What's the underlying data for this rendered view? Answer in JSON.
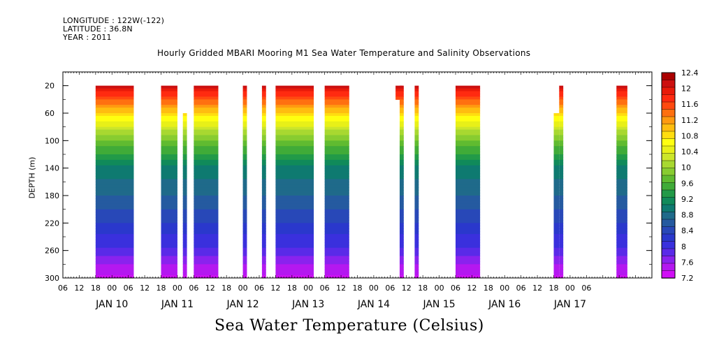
{
  "header": {
    "longitude": "LONGITUDE : 122W(-122)",
    "latitude": "LATITUDE : 36.8N",
    "year": "YEAR : 2011"
  },
  "chart_data": {
    "type": "heatmap",
    "title": "Hourly Gridded MBARI Mooring M1 Sea Water Temperature and Salinity Observations",
    "subtitle": "Sea Water Temperature (Celsius)",
    "ylabel": "DEPTH (m)",
    "xlabel": "",
    "y_ticks": [
      20,
      60,
      100,
      140,
      180,
      220,
      260,
      300
    ],
    "ylim": [
      300,
      0
    ],
    "x_hour_ticks": [
      "06",
      "12",
      "18",
      "00",
      "06",
      "12",
      "18",
      "00",
      "06",
      "12",
      "18",
      "00",
      "06",
      "12",
      "18",
      "00",
      "06",
      "12",
      "18",
      "00",
      "06",
      "12",
      "18",
      "00",
      "06",
      "12",
      "18",
      "00",
      "06",
      "12",
      "18",
      "00",
      "06"
    ],
    "x_day_labels": [
      "JAN 10",
      "JAN 11",
      "JAN 12",
      "JAN 13",
      "JAN 14",
      "JAN 15",
      "JAN 16",
      "JAN 17"
    ],
    "colorbar": {
      "labels": [
        "12.4",
        "12",
        "11.6",
        "11.2",
        "10.8",
        "10.4",
        "10",
        "9.6",
        "9.2",
        "8.8",
        "8.4",
        "8",
        "7.6",
        "7.2"
      ],
      "colors": [
        "#aa0000",
        "#cc1010",
        "#e81a0a",
        "#ff2a10",
        "#ff4a10",
        "#ff7010",
        "#ff9a10",
        "#ffbd10",
        "#ffdd10",
        "#ffff10",
        "#e8f018",
        "#cce62a",
        "#a8d830",
        "#88cc30",
        "#60bb30",
        "#40ab38",
        "#229a48",
        "#108a5a",
        "#0e7a70",
        "#1f6a8a",
        "#255aa0",
        "#2848b8",
        "#2a38cc",
        "#3a30dd",
        "#5a2ae8",
        "#8a22ee",
        "#b418f0",
        "#d010f5"
      ]
    },
    "data_blocks": [
      {
        "start_hour": 12,
        "end_hour": 26,
        "top_depth": 20,
        "bottom_depth": 300
      },
      {
        "start_hour": 36,
        "end_hour": 42,
        "top_depth": 20,
        "bottom_depth": 300
      },
      {
        "start_hour": 44,
        "end_hour": 45.5,
        "top_depth": 60,
        "bottom_depth": 300
      },
      {
        "start_hour": 48,
        "end_hour": 57,
        "top_depth": 20,
        "bottom_depth": 300
      },
      {
        "start_hour": 66,
        "end_hour": 67.5,
        "top_depth": 20,
        "bottom_depth": 300
      },
      {
        "start_hour": 73,
        "end_hour": 74.5,
        "top_depth": 20,
        "bottom_depth": 300
      },
      {
        "start_hour": 78,
        "end_hour": 92,
        "top_depth": 20,
        "bottom_depth": 300
      },
      {
        "start_hour": 96,
        "end_hour": 105,
        "top_depth": 20,
        "bottom_depth": 300
      },
      {
        "start_hour": 122,
        "end_hour": 124.5,
        "top_depth": 20,
        "bottom_depth": 40
      },
      {
        "start_hour": 123.5,
        "end_hour": 125,
        "top_depth": 20,
        "bottom_depth": 300
      },
      {
        "start_hour": 129,
        "end_hour": 130.5,
        "top_depth": 20,
        "bottom_depth": 300
      },
      {
        "start_hour": 144,
        "end_hour": 153,
        "top_depth": 20,
        "bottom_depth": 300
      },
      {
        "start_hour": 180,
        "end_hour": 182,
        "top_depth": 60,
        "bottom_depth": 300
      },
      {
        "start_hour": 182,
        "end_hour": 183.5,
        "top_depth": 20,
        "bottom_depth": 300
      },
      {
        "start_hour": 203,
        "end_hour": 207,
        "top_depth": 20,
        "bottom_depth": 300
      }
    ],
    "temperature_profile": [
      {
        "depth": 20,
        "temp": 12.1
      },
      {
        "depth": 50,
        "temp": 11.2
      },
      {
        "depth": 80,
        "temp": 10.3
      },
      {
        "depth": 110,
        "temp": 9.6
      },
      {
        "depth": 140,
        "temp": 9.0
      },
      {
        "depth": 180,
        "temp": 8.7
      },
      {
        "depth": 220,
        "temp": 8.3
      },
      {
        "depth": 260,
        "temp": 7.9
      },
      {
        "depth": 300,
        "temp": 7.3
      }
    ]
  }
}
